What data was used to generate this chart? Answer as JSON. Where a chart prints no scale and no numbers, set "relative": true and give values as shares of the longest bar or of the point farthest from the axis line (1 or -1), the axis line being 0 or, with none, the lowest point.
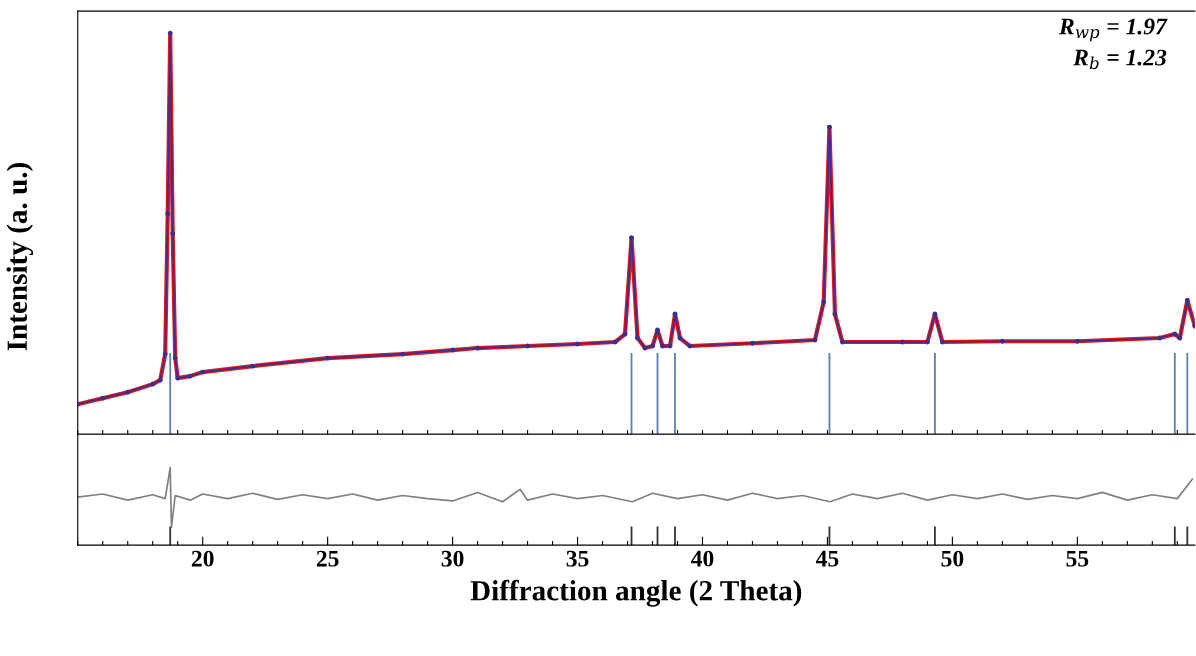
{
  "chart_data": [
    {
      "type": "line",
      "relative": true,
      "ylabel": "Intensity (a. u.)",
      "xlim": [
        15,
        59.7
      ],
      "tick_labels": false,
      "xticks": [
        {
          "value": 15,
          "label": null
        },
        {
          "value": 16,
          "label": null
        },
        {
          "value": 17,
          "label": null
        },
        {
          "value": 18,
          "label": null
        },
        {
          "value": 19,
          "label": null
        },
        {
          "value": 20,
          "label": null
        },
        {
          "value": 21,
          "label": null
        },
        {
          "value": 22,
          "label": null
        },
        {
          "value": 23,
          "label": null
        },
        {
          "value": 24,
          "label": null
        },
        {
          "value": 25,
          "label": null
        },
        {
          "value": 26,
          "label": null
        },
        {
          "value": 27,
          "label": null
        },
        {
          "value": 28,
          "label": null
        },
        {
          "value": 29,
          "label": null
        },
        {
          "value": 30,
          "label": null
        },
        {
          "value": 31,
          "label": null
        },
        {
          "value": 32,
          "label": null
        },
        {
          "value": 33,
          "label": null
        },
        {
          "value": 34,
          "label": null
        },
        {
          "value": 35,
          "label": null
        },
        {
          "value": 36,
          "label": null
        },
        {
          "value": 37,
          "label": null
        },
        {
          "value": 38,
          "label": null
        },
        {
          "value": 39,
          "label": null
        },
        {
          "value": 40,
          "label": null
        },
        {
          "value": 41,
          "label": null
        },
        {
          "value": 42,
          "label": null
        },
        {
          "value": 43,
          "label": null
        },
        {
          "value": 44,
          "label": null
        },
        {
          "value": 45,
          "label": null
        },
        {
          "value": 46,
          "label": null
        },
        {
          "value": 47,
          "label": null
        },
        {
          "value": 48,
          "label": null
        },
        {
          "value": 49,
          "label": null
        },
        {
          "value": 50,
          "label": null
        },
        {
          "value": 51,
          "label": null
        },
        {
          "value": 52,
          "label": null
        },
        {
          "value": 53,
          "label": null
        },
        {
          "value": 54,
          "label": null
        },
        {
          "value": 55,
          "label": null
        },
        {
          "value": 56,
          "label": null
        },
        {
          "value": 57,
          "label": null
        },
        {
          "value": 58,
          "label": null
        },
        {
          "value": 59,
          "label": null
        }
      ],
      "x": [
        15,
        16,
        17,
        18,
        18.3,
        18.5,
        18.6,
        18.7,
        18.8,
        18.9,
        19.0,
        19.5,
        20,
        22,
        25,
        28,
        30,
        31,
        33,
        35,
        36.5,
        36.9,
        37.16,
        37.4,
        37.7,
        38.0,
        38.2,
        38.4,
        38.7,
        38.9,
        39.1,
        39.5,
        42,
        44.5,
        44.85,
        45.08,
        45.3,
        45.6,
        48,
        49.0,
        49.3,
        49.6,
        52,
        55,
        58.3,
        58.9,
        59.1,
        59.4,
        59.7
      ],
      "series": [
        {
          "color": "#3b2f8f",
          "marker": "circle",
          "values": [
            0.075,
            0.09,
            0.105,
            0.125,
            0.135,
            0.2,
            0.55,
            1.0,
            0.5,
            0.19,
            0.14,
            0.145,
            0.155,
            0.17,
            0.19,
            0.2,
            0.21,
            0.215,
            0.22,
            0.225,
            0.23,
            0.25,
            0.49,
            0.24,
            0.215,
            0.22,
            0.26,
            0.22,
            0.22,
            0.3,
            0.24,
            0.22,
            0.227,
            0.235,
            0.33,
            0.766,
            0.3,
            0.23,
            0.23,
            0.23,
            0.3,
            0.23,
            0.232,
            0.232,
            0.24,
            0.25,
            0.24,
            0.334,
            0.27
          ]
        },
        {
          "color": "#e0161b",
          "values": [
            0.075,
            0.09,
            0.105,
            0.125,
            0.135,
            0.2,
            0.55,
            1.0,
            0.5,
            0.19,
            0.14,
            0.145,
            0.155,
            0.17,
            0.19,
            0.2,
            0.21,
            0.215,
            0.22,
            0.225,
            0.23,
            0.25,
            0.49,
            0.24,
            0.215,
            0.22,
            0.26,
            0.22,
            0.22,
            0.3,
            0.24,
            0.22,
            0.227,
            0.235,
            0.33,
            0.766,
            0.3,
            0.23,
            0.23,
            0.23,
            0.3,
            0.23,
            0.232,
            0.232,
            0.24,
            0.25,
            0.24,
            0.334,
            0.27
          ]
        }
      ],
      "ref_lines": [
        {
          "axis": "x",
          "value": 18.7,
          "color": "#5a7fb5"
        },
        {
          "axis": "x",
          "value": 37.16,
          "color": "#5a7fb5"
        },
        {
          "axis": "x",
          "value": 38.2,
          "color": "#5a7fb5"
        },
        {
          "axis": "x",
          "value": 38.9,
          "color": "#5a7fb5"
        },
        {
          "axis": "x",
          "value": 45.08,
          "color": "#5a7fb5"
        },
        {
          "axis": "x",
          "value": 49.3,
          "color": "#5a7fb5"
        },
        {
          "axis": "x",
          "value": 58.9,
          "color": "#5a7fb5"
        },
        {
          "axis": "x",
          "value": 59.4,
          "color": "#5a7fb5"
        }
      ],
      "annotations": [
        "R$_{wp}$ = 1.97",
        "R$_{b}$ = 1.23"
      ]
    },
    {
      "type": "line",
      "relative": true,
      "xlabel": "Diffraction angle (2 Theta)",
      "xlim": [
        15,
        59.7
      ],
      "tick_labels": "x",
      "xticks": [
        {
          "value": 15,
          "label": null
        },
        {
          "value": 16,
          "label": null
        },
        {
          "value": 17,
          "label": null
        },
        {
          "value": 18,
          "label": null
        },
        {
          "value": 19,
          "label": null
        },
        20,
        {
          "value": 21,
          "label": null
        },
        {
          "value": 22,
          "label": null
        },
        {
          "value": 23,
          "label": null
        },
        {
          "value": 24,
          "label": null
        },
        25,
        {
          "value": 26,
          "label": null
        },
        {
          "value": 27,
          "label": null
        },
        {
          "value": 28,
          "label": null
        },
        {
          "value": 29,
          "label": null
        },
        30,
        {
          "value": 31,
          "label": null
        },
        {
          "value": 32,
          "label": null
        },
        {
          "value": 33,
          "label": null
        },
        {
          "value": 34,
          "label": null
        },
        35,
        {
          "value": 36,
          "label": null
        },
        {
          "value": 37,
          "label": null
        },
        {
          "value": 38,
          "label": null
        },
        {
          "value": 39,
          "label": null
        },
        40,
        {
          "value": 41,
          "label": null
        },
        {
          "value": 42,
          "label": null
        },
        {
          "value": 43,
          "label": null
        },
        {
          "value": 44,
          "label": null
        },
        45,
        {
          "value": 46,
          "label": null
        },
        {
          "value": 47,
          "label": null
        },
        {
          "value": 48,
          "label": null
        },
        {
          "value": 49,
          "label": null
        },
        50,
        {
          "value": 51,
          "label": null
        },
        {
          "value": 52,
          "label": null
        },
        {
          "value": 53,
          "label": null
        },
        {
          "value": 54,
          "label": null
        },
        55,
        {
          "value": 56,
          "label": null
        },
        {
          "value": 57,
          "label": null
        },
        {
          "value": 58,
          "label": null
        },
        {
          "value": 59,
          "label": null
        }
      ],
      "x": [
        15,
        16,
        17,
        18,
        18.5,
        18.7,
        18.75,
        18.9,
        19.5,
        20,
        21,
        22,
        23,
        24,
        25,
        26,
        27,
        28,
        29,
        30,
        31,
        32,
        32.7,
        33,
        34,
        35,
        36,
        37.2,
        38,
        39,
        40,
        41,
        42,
        43,
        44,
        45.1,
        46,
        47,
        48,
        49,
        50,
        51,
        52,
        53,
        54,
        55,
        56,
        57,
        58,
        59,
        59.6
      ],
      "series": [
        {
          "color": "#808080",
          "values": [
            0.62,
            0.66,
            0.58,
            0.65,
            0.6,
            1.0,
            0.23,
            0.64,
            0.58,
            0.66,
            0.6,
            0.67,
            0.59,
            0.65,
            0.6,
            0.66,
            0.58,
            0.64,
            0.6,
            0.57,
            0.68,
            0.56,
            0.72,
            0.58,
            0.66,
            0.6,
            0.64,
            0.56,
            0.67,
            0.6,
            0.65,
            0.58,
            0.67,
            0.6,
            0.64,
            0.56,
            0.66,
            0.6,
            0.67,
            0.58,
            0.65,
            0.6,
            0.66,
            0.59,
            0.64,
            0.6,
            0.68,
            0.58,
            0.65,
            0.6,
            0.85
          ]
        }
      ],
      "ref_lines": [
        {
          "axis": "x",
          "value": 18.7,
          "color": "#333333"
        },
        {
          "axis": "x",
          "value": 37.16,
          "color": "#333333"
        },
        {
          "axis": "x",
          "value": 38.2,
          "color": "#333333"
        },
        {
          "axis": "x",
          "value": 38.9,
          "color": "#333333"
        },
        {
          "axis": "x",
          "value": 45.08,
          "color": "#333333"
        },
        {
          "axis": "x",
          "value": 49.3,
          "color": "#333333"
        },
        {
          "axis": "x",
          "value": 58.9,
          "color": "#333333"
        },
        {
          "axis": "x",
          "value": 59.4,
          "color": "#333333"
        }
      ]
    }
  ]
}
